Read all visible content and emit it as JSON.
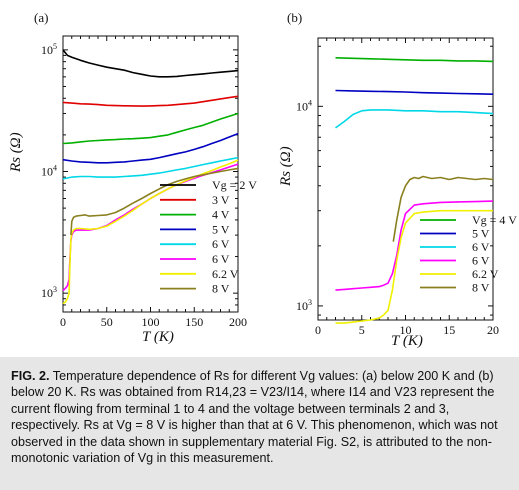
{
  "chart_data": [
    {
      "panel": "(a)",
      "type": "line",
      "xlabel": "T (K)",
      "ylabel": "Rs (Ω)",
      "xlim": [
        0,
        200
      ],
      "ylim": [
        700,
        130000
      ],
      "yscale": "log",
      "xticks": [
        0,
        50,
        100,
        150,
        200
      ],
      "ytick_labels": [
        "10^3",
        "10^4",
        "10^5"
      ],
      "legend_position": "lower-right",
      "series": [
        {
          "name": "Vg=2 V",
          "color": "#000000",
          "x": [
            0,
            5,
            10,
            20,
            30,
            40,
            50,
            60,
            70,
            80,
            90,
            100,
            110,
            120,
            130,
            140,
            150,
            160,
            170,
            180,
            190,
            200
          ],
          "y": [
            100000,
            90000,
            87000,
            82000,
            78000,
            75000,
            72000,
            70000,
            68000,
            65000,
            63000,
            61000,
            60000,
            60000,
            60500,
            61500,
            62500,
            63500,
            64500,
            65500,
            66500,
            67500
          ]
        },
        {
          "name": "3 V",
          "color": "#e00000",
          "x": [
            0,
            10,
            20,
            30,
            40,
            50,
            60,
            70,
            80,
            90,
            100,
            110,
            120,
            130,
            140,
            150,
            160,
            170,
            180,
            190,
            200
          ],
          "y": [
            37000,
            36500,
            36000,
            35800,
            35500,
            35000,
            34800,
            34700,
            34600,
            34500,
            34600,
            34800,
            35000,
            35500,
            36000,
            36500,
            37500,
            38500,
            39500,
            40500,
            41500
          ]
        },
        {
          "name": "4 V",
          "color": "#00b000",
          "x": [
            0,
            10,
            20,
            30,
            40,
            50,
            60,
            70,
            80,
            90,
            100,
            110,
            120,
            130,
            140,
            150,
            160,
            170,
            180,
            190,
            200
          ],
          "y": [
            17000,
            17200,
            17500,
            17800,
            18000,
            18200,
            18300,
            18500,
            18600,
            18800,
            19000,
            19500,
            20000,
            21000,
            22000,
            23000,
            24000,
            25500,
            27000,
            28500,
            30000
          ]
        },
        {
          "name": "5 V",
          "color": "#0000c0",
          "x": [
            0,
            10,
            20,
            30,
            40,
            50,
            60,
            70,
            80,
            90,
            100,
            110,
            120,
            130,
            140,
            150,
            160,
            170,
            180,
            190,
            200
          ],
          "y": [
            12500,
            12200,
            12000,
            11900,
            11800,
            11800,
            11900,
            12000,
            12200,
            12400,
            12600,
            13000,
            13500,
            14000,
            14500,
            15200,
            16000,
            17000,
            18000,
            19200,
            20500
          ]
        },
        {
          "name": "6 V",
          "color": "#00d8e8",
          "x": [
            0,
            10,
            20,
            30,
            40,
            50,
            60,
            70,
            80,
            90,
            100,
            110,
            120,
            130,
            140,
            150,
            160,
            170,
            180,
            190,
            200
          ],
          "y": [
            8700,
            9000,
            9100,
            9100,
            9000,
            9000,
            9000,
            9100,
            9200,
            9300,
            9500,
            9700,
            10000,
            10300,
            10600,
            11000,
            11400,
            11800,
            12200,
            12600,
            13000
          ]
        },
        {
          "name": "6 V",
          "color": "#ff00ff",
          "x": [
            0,
            3,
            5,
            7,
            8,
            9,
            10,
            12,
            15,
            20,
            30,
            40,
            50,
            60,
            70,
            80,
            90,
            100,
            110,
            120,
            130,
            140,
            150,
            160,
            170,
            180,
            190,
            200
          ],
          "y": [
            1050,
            1100,
            1150,
            1300,
            2000,
            2700,
            3000,
            3200,
            3300,
            3300,
            3300,
            3400,
            3600,
            4000,
            4400,
            4900,
            5400,
            6000,
            6600,
            7200,
            7800,
            8300,
            8800,
            9300,
            9800,
            10300,
            10900,
            11500
          ]
        },
        {
          "name": "6.2 V",
          "color": "#f0f000",
          "x": [
            0,
            3,
            5,
            7,
            8,
            9,
            10,
            12,
            15,
            20,
            30,
            40,
            50,
            60,
            70,
            80,
            90,
            100,
            110,
            120,
            130,
            140,
            150,
            160,
            170,
            180,
            190,
            200
          ],
          "y": [
            820,
            850,
            900,
            1000,
            1800,
            2800,
            3100,
            3300,
            3400,
            3400,
            3350,
            3400,
            3550,
            3900,
            4300,
            4800,
            5400,
            6000,
            6600,
            7200,
            7800,
            8400,
            9000,
            9600,
            10200,
            10900,
            11600,
            12400
          ]
        },
        {
          "name": "8 V",
          "color": "#8a8020",
          "x": [
            9,
            10,
            12,
            15,
            20,
            25,
            30,
            40,
            50,
            60,
            70,
            80,
            90,
            100,
            110,
            120,
            130,
            140,
            150,
            160,
            170,
            180,
            190,
            200
          ],
          "y": [
            3000,
            3900,
            4200,
            4300,
            4350,
            4400,
            4300,
            4350,
            4400,
            4600,
            5000,
            5500,
            6000,
            6600,
            7200,
            7800,
            8300,
            8700,
            9100,
            9400,
            9700,
            10000,
            10300,
            10600
          ]
        }
      ]
    },
    {
      "panel": "(b)",
      "type": "line",
      "xlabel": "T (K)",
      "ylabel": "Rs (Ω)",
      "xlim": [
        0,
        20
      ],
      "ylim": [
        850,
        22000
      ],
      "yscale": "log",
      "xticks": [
        0,
        5,
        10,
        15,
        20
      ],
      "ytick_labels": [
        "10^3",
        "10^4"
      ],
      "legend_position": "lower-right",
      "series": [
        {
          "name": "Vg=4 V",
          "color": "#00b000",
          "x": [
            2,
            4,
            6,
            8,
            10,
            12,
            14,
            16,
            18,
            20
          ],
          "y": [
            17500,
            17400,
            17300,
            17200,
            17100,
            17000,
            17000,
            16900,
            16900,
            16800
          ]
        },
        {
          "name": "5 V",
          "color": "#0000c0",
          "x": [
            2,
            4,
            6,
            8,
            10,
            12,
            14,
            16,
            18,
            20
          ],
          "y": [
            12000,
            11950,
            11900,
            11850,
            11800,
            11700,
            11650,
            11600,
            11550,
            11500
          ]
        },
        {
          "name": "6 V",
          "color": "#00d8e8",
          "x": [
            2,
            3,
            4,
            5,
            6,
            8,
            10,
            12,
            14,
            16,
            18,
            20
          ],
          "y": [
            7800,
            8400,
            9100,
            9500,
            9600,
            9600,
            9500,
            9500,
            9400,
            9400,
            9300,
            9200
          ]
        },
        {
          "name": "6 V",
          "color": "#ff00ff",
          "x": [
            2,
            3,
            4,
            5,
            6,
            7,
            7.5,
            8,
            8.5,
            9,
            9.5,
            10,
            11,
            12,
            14,
            16,
            18,
            20
          ],
          "y": [
            1200,
            1210,
            1220,
            1230,
            1240,
            1250,
            1270,
            1300,
            1450,
            1800,
            2400,
            2900,
            3200,
            3250,
            3300,
            3320,
            3330,
            3350
          ]
        },
        {
          "name": "6.2 V",
          "color": "#f0f000",
          "x": [
            2,
            3,
            4,
            5,
            6,
            7,
            7.5,
            8,
            8.5,
            9,
            9.5,
            10,
            11,
            12,
            14,
            16,
            18,
            20
          ],
          "y": [
            820,
            820,
            830,
            840,
            850,
            870,
            900,
            950,
            1200,
            1700,
            2200,
            2600,
            2900,
            2950,
            3000,
            3000,
            3000,
            3000
          ]
        },
        {
          "name": "8 V",
          "color": "#8a8020",
          "x": [
            8.6,
            9,
            9.5,
            10,
            10.5,
            11,
            11.5,
            12,
            13,
            14,
            15,
            16,
            17,
            18,
            19,
            20
          ],
          "y": [
            2100,
            2700,
            3500,
            4000,
            4300,
            4400,
            4350,
            4450,
            4350,
            4400,
            4300,
            4400,
            4350,
            4300,
            4350,
            4300
          ]
        }
      ]
    }
  ],
  "panel_a": {
    "label": "(a)",
    "xaxis_title": "T (K)",
    "yaxis_title": "Rs (Ω)",
    "legend": [
      "Vg = 2 V",
      "3 V",
      "4 V",
      "5 V",
      "6 V",
      "6 V",
      "6.2 V",
      "8 V"
    ],
    "xtick_labels": [
      "0",
      "50",
      "100",
      "150",
      "200"
    ]
  },
  "panel_b": {
    "label": "(b)",
    "xaxis_title": "T (K)",
    "yaxis_title": "Rs (Ω)",
    "legend": [
      "Vg = 4 V",
      "5 V",
      "6 V",
      "6 V",
      "6.2 V",
      "8 V"
    ],
    "xtick_labels": [
      "0",
      "5",
      "10",
      "15",
      "20"
    ]
  },
  "caption": {
    "label": "FIG. 2.",
    "text": "Temperature dependence of Rs for different Vg values: (a) below 200 K and (b) below 20 K. Rs was obtained from R14,23 = V23/I14, where I14 and V23 represent the current flowing from terminal 1 to 4 and the voltage between terminals 2 and 3, respectively. Rs at Vg = 8 V is higher than that at 6 V. This phenomenon, which was not observed in the data shown in supplementary material Fig. S2, is attributed to the non-monotonic variation of Vg in this measurement."
  }
}
